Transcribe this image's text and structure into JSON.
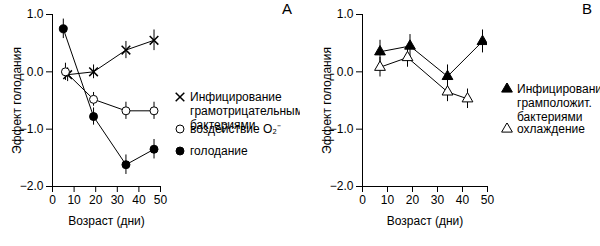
{
  "chart_data": [
    {
      "type": "line",
      "title": "А",
      "x_label": "Возраст (дни)",
      "y_label": "Эффект голодания",
      "xlim": [
        0,
        50
      ],
      "xticks": [
        0,
        10,
        20,
        30,
        40,
        50
      ],
      "ylim": [
        -2,
        1
      ],
      "yticks": [
        -2,
        -1,
        0,
        1
      ],
      "legend": "right",
      "series": [
        {
          "name": "Инфицирование грамотрицательными бактериями",
          "color": "#000000",
          "marker": "x",
          "x": [
            7,
            19,
            34,
            47
          ],
          "values": [
            -0.05,
            0.0,
            0.38,
            0.55
          ],
          "errors": [
            0.12,
            0.12,
            0.15,
            0.18
          ]
        },
        {
          "name": "воздействие O₂⁻",
          "color": "#000000",
          "marker": "circle-open",
          "x": [
            6,
            19,
            34,
            47
          ],
          "values": [
            0.0,
            -0.48,
            -0.68,
            -0.68
          ],
          "errors": [
            0.15,
            0.12,
            0.15,
            0.15
          ]
        },
        {
          "name": "голодание",
          "color": "#000000",
          "marker": "circle",
          "x": [
            5,
            19,
            34,
            47
          ],
          "values": [
            0.75,
            -0.78,
            -1.62,
            -1.35
          ],
          "errors": [
            0.17,
            0.15,
            0.17,
            0.17
          ]
        }
      ]
    },
    {
      "type": "line",
      "title": "В",
      "x_label": "Возраст (дни)",
      "y_label": "Эффект голодания",
      "xlim": [
        0,
        50
      ],
      "xticks": [
        0,
        10,
        20,
        30,
        40,
        50
      ],
      "ylim": [
        -2,
        1
      ],
      "yticks": [
        -2,
        -1,
        0,
        1
      ],
      "legend": "right",
      "series": [
        {
          "name": "Инфицирование грамположит. бактериями",
          "color": "#000000",
          "marker": "triangle",
          "x": [
            7,
            19,
            34,
            48
          ],
          "values": [
            0.35,
            0.45,
            -0.08,
            0.53
          ],
          "errors": [
            0.2,
            0.2,
            0.2,
            0.2
          ]
        },
        {
          "name": "охлаждение",
          "color": "#000000",
          "marker": "triangle-open",
          "x": [
            7,
            18,
            34,
            42
          ],
          "values": [
            0.08,
            0.25,
            -0.35,
            -0.47
          ],
          "errors": [
            0.17,
            0.17,
            0.17,
            0.17
          ]
        }
      ]
    }
  ]
}
